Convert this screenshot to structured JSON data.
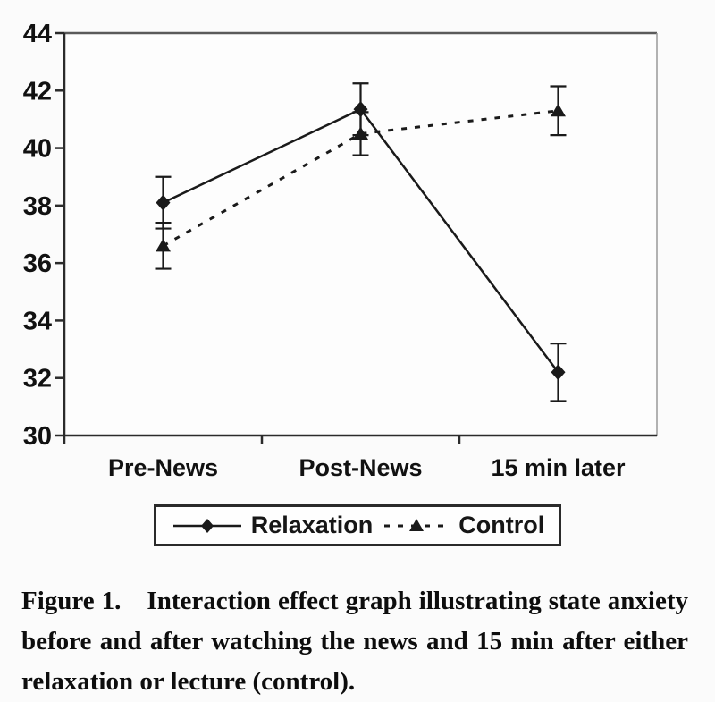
{
  "chart_data": {
    "type": "line",
    "title": "",
    "xlabel": "",
    "ylabel": "",
    "categories": [
      "Pre-News",
      "Post-News",
      "15 min later"
    ],
    "series": [
      {
        "name": "Relaxation",
        "marker": "diamond",
        "line_style": "solid",
        "values": [
          38.1,
          41.35,
          32.2
        ],
        "error": [
          0.9,
          0.9,
          1.0
        ]
      },
      {
        "name": "Control",
        "marker": "triangle",
        "line_style": "dashed",
        "values": [
          36.6,
          40.5,
          41.3
        ],
        "error": [
          0.8,
          0.75,
          0.85
        ]
      }
    ],
    "ylim": [
      30,
      44
    ],
    "ytick_step": 2,
    "ytick_labels": [
      "30",
      "32",
      "34",
      "36",
      "38",
      "40",
      "42",
      "44"
    ],
    "grid": false,
    "error_bars": true,
    "legend_position": "bottom-box"
  },
  "legend": {
    "items": [
      {
        "label": "Relaxation"
      },
      {
        "label": "Control"
      }
    ]
  },
  "caption": {
    "label": "Figure 1.",
    "lines": [
      "Figure 1.  Interaction effect graph illustrating state anxiety",
      "before and after watching the news and 15 min after either",
      "relaxation or lecture (control)."
    ]
  },
  "colors": {
    "ink": "#1a1a1a",
    "axis": "#2b2b2b",
    "frame_top": "#5a5a5a",
    "frame_right": "#9a9a9a",
    "background": "#fbfbfb",
    "plot_background": "#fdfdfd"
  }
}
